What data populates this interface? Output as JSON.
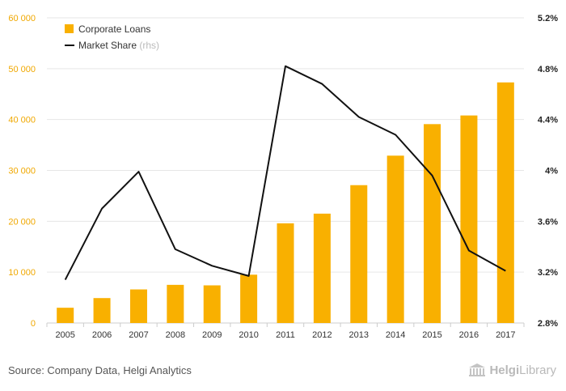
{
  "chart_data": {
    "type": "bar",
    "categories": [
      "2005",
      "2006",
      "2007",
      "2008",
      "2009",
      "2010",
      "2011",
      "2012",
      "2013",
      "2014",
      "2015",
      "2016",
      "2017"
    ],
    "series": [
      {
        "name": "Corporate Loans",
        "type": "bar",
        "axis": "left",
        "values": [
          3000,
          4900,
          6600,
          7500,
          7400,
          9500,
          19600,
          21500,
          27100,
          32900,
          39100,
          40800,
          47300
        ]
      },
      {
        "name": "Market Share",
        "name_suffix": "(rhs)",
        "type": "line",
        "axis": "right",
        "values": [
          3.14,
          3.7,
          3.99,
          3.38,
          3.25,
          3.17,
          4.82,
          4.68,
          4.42,
          4.28,
          3.96,
          3.37,
          3.21
        ]
      }
    ],
    "y_left": {
      "min": 0,
      "max": 60000,
      "ticks": [
        0,
        10000,
        20000,
        30000,
        40000,
        50000,
        60000
      ],
      "tick_labels": [
        "0",
        "10 000",
        "20 000",
        "30 000",
        "40 000",
        "50 000",
        "60 000"
      ]
    },
    "y_right": {
      "min": 2.8,
      "max": 5.2,
      "ticks": [
        2.8,
        3.2,
        3.6,
        4.0,
        4.4,
        4.8,
        5.2
      ],
      "tick_labels": [
        "2.8%",
        "3.2%",
        "3.6%",
        "4%",
        "4.4%",
        "4.8%",
        "5.2%"
      ]
    },
    "legend_position": "top-left",
    "grid": true,
    "colors": {
      "bar": "#f9b000",
      "line": "#111111",
      "left_axis_text": "#f0a800",
      "grid": "#e6e6e6"
    }
  },
  "footer": {
    "source": "Source: Company Data, Helgi Analytics",
    "brand_part1": "Helgi",
    "brand_part2": "Library"
  }
}
